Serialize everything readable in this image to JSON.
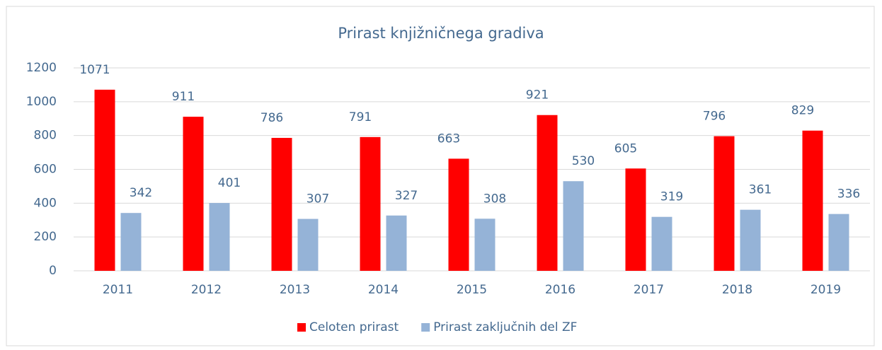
{
  "chart_data": {
    "type": "bar",
    "title": "Prirast knjižničnega gradiva",
    "categories": [
      "2011",
      "2012",
      "2013",
      "2014",
      "2015",
      "2016",
      "2017",
      "2018",
      "2019"
    ],
    "series": [
      {
        "name": "Celoten prirast",
        "color": "#ff0000",
        "values": [
          1071,
          911,
          786,
          791,
          663,
          921,
          605,
          796,
          829
        ]
      },
      {
        "name": "Prirast zaključnih del ZF",
        "color": "#95b3d7",
        "values": [
          342,
          401,
          307,
          327,
          308,
          530,
          319,
          361,
          336
        ]
      }
    ],
    "ylim": [
      0,
      1200
    ],
    "yticks": [
      0,
      200,
      400,
      600,
      800,
      1000,
      1200
    ],
    "grid": true,
    "legend": "bottom"
  }
}
